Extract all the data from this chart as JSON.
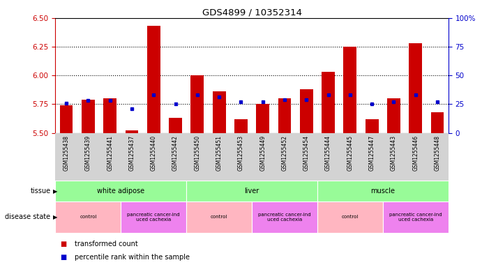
{
  "title": "GDS4899 / 10352314",
  "samples": [
    "GSM1255438",
    "GSM1255439",
    "GSM1255441",
    "GSM1255437",
    "GSM1255440",
    "GSM1255442",
    "GSM1255450",
    "GSM1255451",
    "GSM1255453",
    "GSM1255449",
    "GSM1255452",
    "GSM1255454",
    "GSM1255444",
    "GSM1255445",
    "GSM1255447",
    "GSM1255443",
    "GSM1255446",
    "GSM1255448"
  ],
  "red_values": [
    5.74,
    5.79,
    5.8,
    5.52,
    6.43,
    5.63,
    6.0,
    5.86,
    5.62,
    5.75,
    5.8,
    5.88,
    6.03,
    6.25,
    5.62,
    5.8,
    6.28,
    5.68
  ],
  "blue_values": [
    26,
    28,
    28,
    21,
    33,
    25,
    33,
    31,
    27,
    27,
    29,
    29,
    33,
    33,
    25,
    27,
    33,
    27
  ],
  "ylim_left": [
    5.5,
    6.5
  ],
  "ylim_right": [
    0,
    100
  ],
  "yticks_left": [
    5.5,
    5.75,
    6.0,
    6.25,
    6.5
  ],
  "yticks_right": [
    0,
    25,
    50,
    75,
    100
  ],
  "grid_values": [
    5.75,
    6.0,
    6.25
  ],
  "tissue_groups": [
    {
      "label": "white adipose",
      "start": 0,
      "end": 6,
      "color": "#98FB98"
    },
    {
      "label": "liver",
      "start": 6,
      "end": 12,
      "color": "#98FB98"
    },
    {
      "label": "muscle",
      "start": 12,
      "end": 18,
      "color": "#98FB98"
    }
  ],
  "disease_groups": [
    {
      "label": "control",
      "start": 0,
      "end": 3,
      "color": "#FFB6C1"
    },
    {
      "label": "pancreatic cancer-ind\nuced cachexia",
      "start": 3,
      "end": 6,
      "color": "#EE82EE"
    },
    {
      "label": "control",
      "start": 6,
      "end": 9,
      "color": "#FFB6C1"
    },
    {
      "label": "pancreatic cancer-ind\nuced cachexia",
      "start": 9,
      "end": 12,
      "color": "#EE82EE"
    },
    {
      "label": "control",
      "start": 12,
      "end": 15,
      "color": "#FFB6C1"
    },
    {
      "label": "pancreatic cancer-ind\nuced cachexia",
      "start": 15,
      "end": 18,
      "color": "#EE82EE"
    }
  ],
  "bar_color": "#CC0000",
  "blue_color": "#0000CC",
  "axis_left_color": "#CC0000",
  "axis_right_color": "#0000CC",
  "bar_width": 0.6,
  "bg_color": "#FFFFFF",
  "base_value": 5.5
}
